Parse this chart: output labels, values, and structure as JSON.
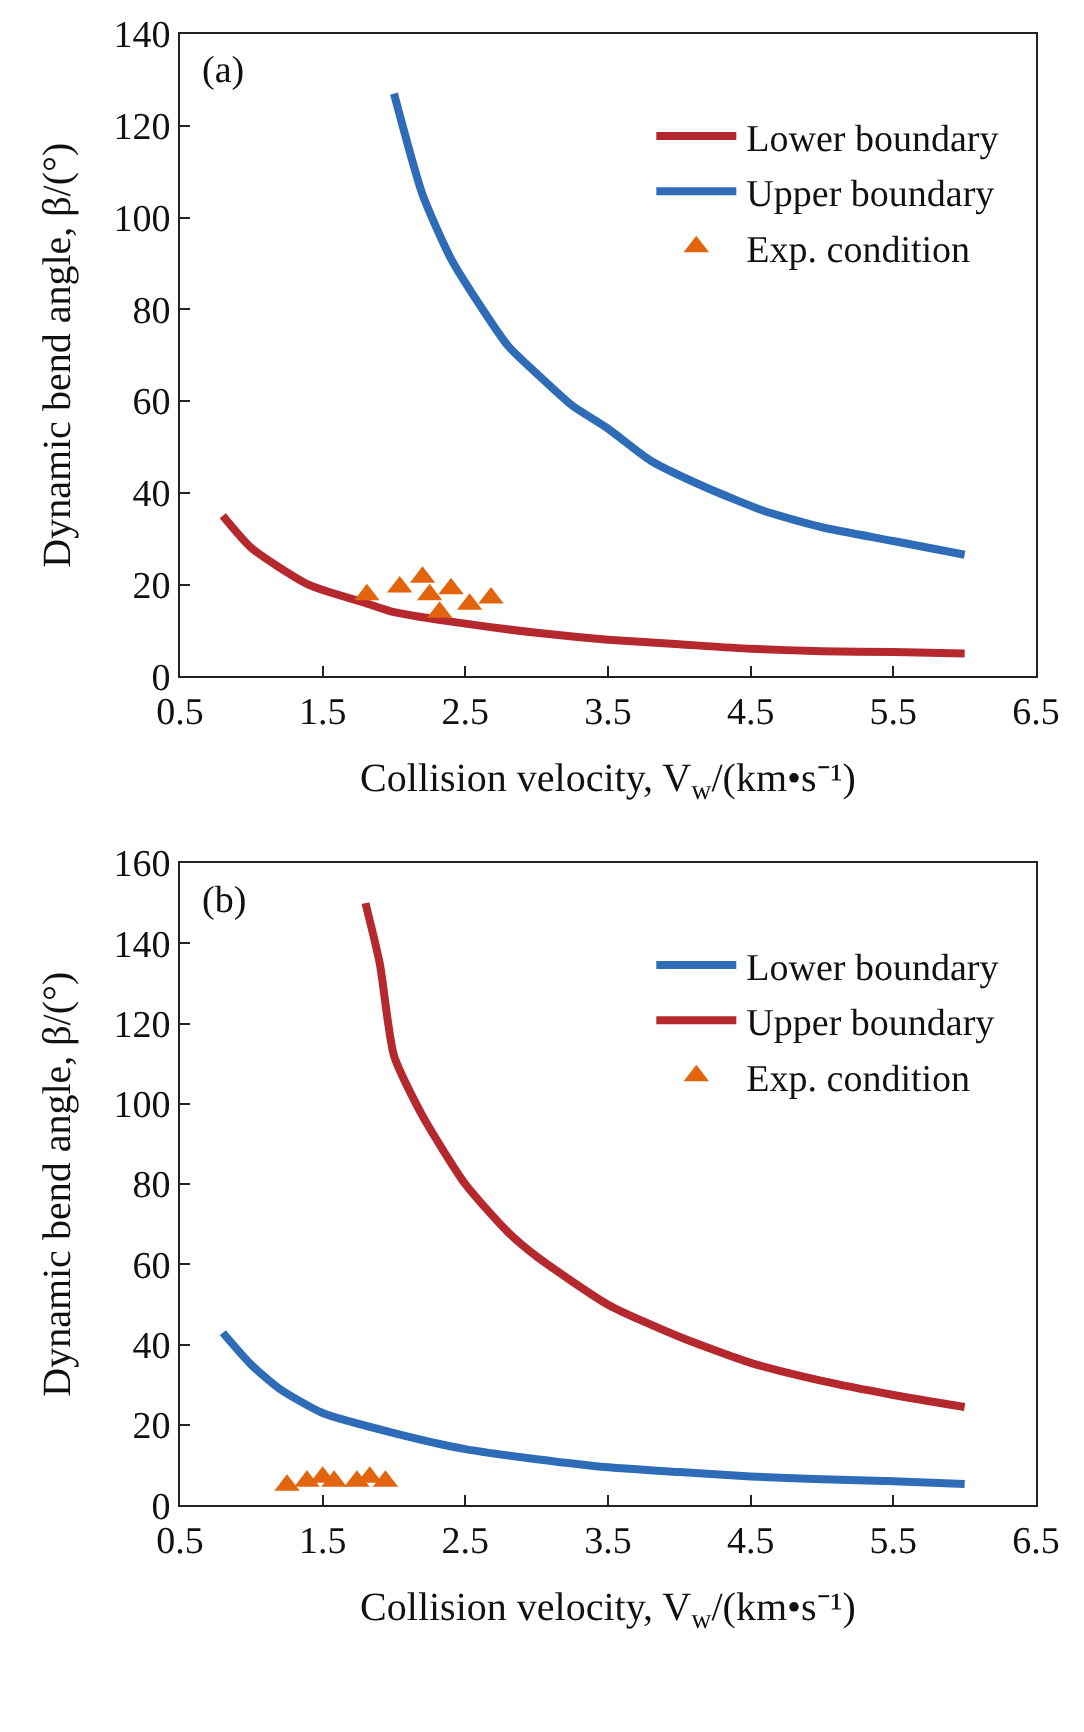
{
  "chart_data": [
    {
      "type": "line",
      "annotations": [
        "(a)"
      ],
      "xlabel": "Collision velocity, V$_{w}$/(km•s⁻¹)",
      "ylabel": "Dynamic bend angle, β/(°)",
      "xlim": [
        0.5,
        6.5
      ],
      "xticks": [
        0.5,
        1.5,
        2.5,
        3.5,
        4.5,
        5.5,
        6.5
      ],
      "ylim": [
        0,
        140
      ],
      "yticks": [
        0,
        20,
        40,
        60,
        80,
        100,
        120,
        140
      ],
      "legend": "top right",
      "series": [
        {
          "name": "Lower boundary",
          "marker": "none",
          "color": "#b5282e",
          "x": [
            0.8,
            1.0,
            1.4,
            1.8,
            2.0,
            2.5,
            3.0,
            3.5,
            4.0,
            4.5,
            5.0,
            5.5,
            6.0
          ],
          "values": [
            35,
            28,
            20,
            16,
            14,
            11.5,
            9.5,
            8,
            7,
            6,
            5.5,
            5.3,
            5
          ]
        },
        {
          "name": "Upper boundary",
          "marker": "none",
          "color": "#2f6cb8",
          "x": [
            2.0,
            2.2,
            2.4,
            2.6,
            2.8,
            3.0,
            3.25,
            3.5,
            3.8,
            4.2,
            4.6,
            5.0,
            5.5,
            6.0
          ],
          "values": [
            127,
            105,
            91,
            81,
            72,
            66,
            59,
            54,
            47,
            41,
            36,
            32.5,
            29.5,
            26.5
          ]
        },
        {
          "name": "Exp. condition",
          "type": "scatter",
          "marker": "triangle",
          "color": "#e2640c",
          "x": [
            1.81,
            2.04,
            2.2,
            2.25,
            2.32,
            2.4,
            2.53,
            2.68
          ],
          "values": [
            17.8,
            19.5,
            21.6,
            17.8,
            14,
            19.1,
            15.7,
            17.1
          ]
        }
      ]
    },
    {
      "type": "line",
      "annotations": [
        "(b)"
      ],
      "xlabel": "Collision velocity, V$_{w}$/(km•s⁻¹)",
      "ylabel": "Dynamic bend angle, β/(°)",
      "xlim": [
        0.5,
        6.5
      ],
      "xticks": [
        0.5,
        1.5,
        2.5,
        3.5,
        4.5,
        5.5,
        6.5
      ],
      "ylim": [
        0,
        160
      ],
      "yticks": [
        0,
        20,
        40,
        60,
        80,
        100,
        120,
        140,
        160
      ],
      "legend": "top right",
      "series": [
        {
          "name": "Lower boundary",
          "marker": "none",
          "color": "#2f6cb8",
          "x": [
            0.8,
            1.0,
            1.2,
            1.5,
            2.0,
            2.5,
            3.0,
            3.5,
            4.0,
            4.5,
            5.0,
            5.5,
            6.0
          ],
          "values": [
            43,
            35,
            29,
            23,
            18,
            14,
            11.5,
            9.5,
            8.3,
            7.2,
            6.5,
            6,
            5.3
          ]
        },
        {
          "name": "Upper boundary",
          "marker": "none",
          "color": "#b5282e",
          "x": [
            1.8,
            1.9,
            2.0,
            2.2,
            2.5,
            2.8,
            3.0,
            3.5,
            4.0,
            4.5,
            5.0,
            5.5,
            6.0
          ],
          "values": [
            150,
            135,
            112,
            97,
            80,
            68,
            62,
            50,
            42,
            35.5,
            31,
            27.5,
            24.5
          ]
        },
        {
          "name": "Exp. condition",
          "type": "scatter",
          "marker": "triangle",
          "color": "#e2640c",
          "x": [
            1.25,
            1.39,
            1.5,
            1.58,
            1.74,
            1.83,
            1.94
          ],
          "values": [
            5,
            6,
            7,
            6,
            6,
            7,
            6
          ]
        }
      ]
    }
  ]
}
